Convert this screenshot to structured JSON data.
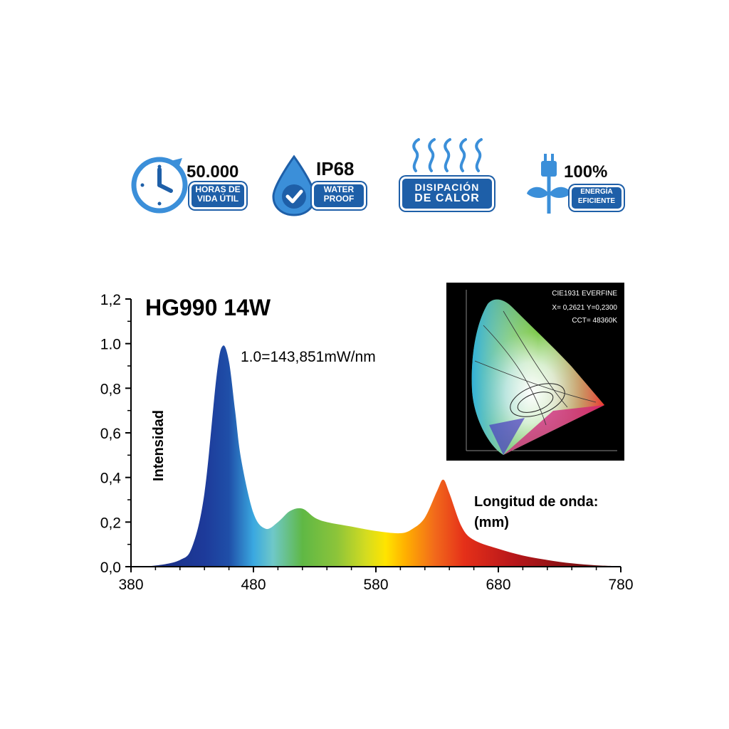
{
  "badges": {
    "hours": {
      "value": "50.000",
      "label_line1": "HORAS DE",
      "label_line2": "VIDA ÚTIL"
    },
    "ip": {
      "value": "IP68",
      "label_line1": "WATER",
      "label_line2": "PROOF"
    },
    "heat": {
      "label_line1": "DISIPACIÓN",
      "label_line2": "DE CALOR"
    },
    "energy": {
      "value": "100%",
      "label_line1": "ENERGÍA",
      "label_line2": "EFICIENTE"
    },
    "brand_color": "#1e5fa8"
  },
  "cie": {
    "line1": "CIE1931 EVERFINE",
    "line2": "X= 0,2621 Y=0,2300",
    "line3": "CCT= 48360K"
  },
  "chart_data": {
    "type": "area",
    "title": "HG990 14W",
    "annotation": "1.0=143,851mW/nm",
    "ylabel": "Intensidad",
    "xlabel_line1": "Longitud de onda:",
    "xlabel_line2": "(mm)",
    "xlim": [
      380,
      780
    ],
    "ylim": [
      0,
      1.2
    ],
    "x_ticks": [
      "380",
      "480",
      "580",
      "680",
      "780"
    ],
    "y_ticks": [
      "0,0",
      "0,2",
      "0,4",
      "0,6",
      "0,8",
      "1.0",
      "1,2"
    ],
    "x": [
      380,
      400,
      420,
      430,
      440,
      450,
      455,
      460,
      465,
      470,
      480,
      490,
      500,
      510,
      520,
      530,
      540,
      560,
      580,
      600,
      610,
      620,
      630,
      635,
      640,
      650,
      660,
      680,
      700,
      720,
      740,
      760,
      780
    ],
    "y": [
      0.0,
      0.005,
      0.03,
      0.09,
      0.33,
      0.86,
      0.99,
      0.92,
      0.7,
      0.48,
      0.24,
      0.17,
      0.2,
      0.25,
      0.26,
      0.22,
      0.2,
      0.18,
      0.16,
      0.15,
      0.17,
      0.22,
      0.34,
      0.39,
      0.33,
      0.18,
      0.12,
      0.08,
      0.05,
      0.03,
      0.015,
      0.006,
      0.002
    ]
  }
}
